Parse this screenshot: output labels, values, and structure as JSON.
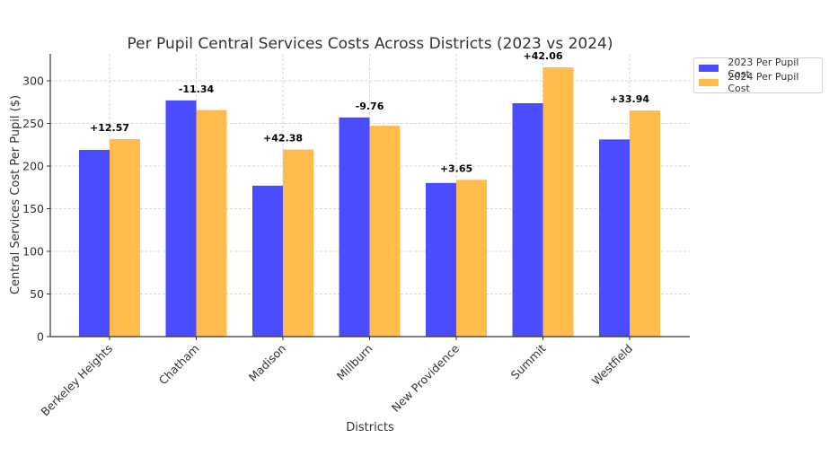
{
  "chart_data": {
    "type": "bar",
    "title": "Per Pupil Central Services Costs Across Districts (2023 vs 2024)",
    "xlabel": "Districts",
    "ylabel": "Central Services Cost Per Pupil ($)",
    "ylim": [
      0,
      332
    ],
    "yticks": [
      0,
      50,
      100,
      150,
      200,
      250,
      300
    ],
    "grid": true,
    "legend_position": "top-right-outside",
    "categories": [
      "Berkeley Heights",
      "Chatham",
      "Madison",
      "Millburn",
      "New Providence",
      "Summit",
      "Westfield"
    ],
    "series": [
      {
        "name": "2023 Per Pupil Cost",
        "color": "#4b4bff",
        "values": [
          219.0,
          277.0,
          177.0,
          257.0,
          180.2,
          273.7,
          231.2
        ]
      },
      {
        "name": "2024 Per Pupil Cost",
        "color": "#ffbc4d",
        "values": [
          231.57,
          265.66,
          219.38,
          247.24,
          183.85,
          315.76,
          265.14
        ]
      }
    ],
    "annotations": [
      "+12.57",
      "-11.34",
      "+42.38",
      "-9.76",
      "+3.65",
      "+42.06",
      "+33.94"
    ]
  }
}
